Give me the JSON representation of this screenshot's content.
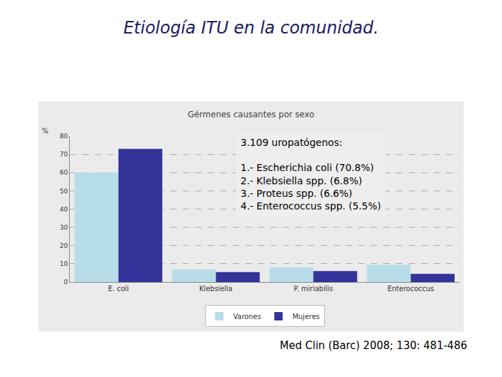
{
  "header": {
    "title": "Etiología ITU  en la comunidad."
  },
  "footer": {
    "citation": "Med Clin (Barc) 2008; 130: 481-486"
  },
  "chart_data": {
    "type": "bar",
    "title": "Gérmenes causantes por sexo",
    "y_label": "%",
    "categories": [
      "E. coli",
      "Klebsiella",
      "P. miriabilis",
      "Enterococcus"
    ],
    "series": [
      {
        "name": "Varones",
        "color": "#b7dde8",
        "values": [
          60,
          7,
          8,
          9.5
        ]
      },
      {
        "name": "Mujeres",
        "color": "#333399",
        "values": [
          73,
          5.5,
          6,
          4.5
        ]
      }
    ],
    "ylim": [
      0,
      80
    ],
    "yticks": [
      0,
      10,
      20,
      30,
      40,
      50,
      60,
      70,
      80
    ],
    "grid": true,
    "legend": "bottom",
    "annotations": [
      "3.109 uropatógenos:",
      "1.- Escherichia coli (70.8%)",
      "2.- Klebsiella spp. (6.8%)",
      "3.- Proteus spp. (6.6%)",
      "4.- Enterococcus spp. (5.5%)"
    ]
  }
}
